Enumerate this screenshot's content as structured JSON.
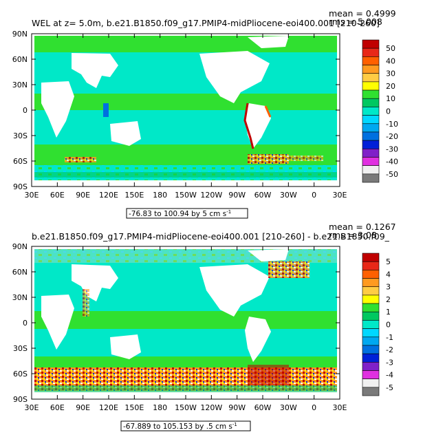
{
  "chart_data": [
    {
      "type": "heatmap",
      "title": "WEL at z=    5.0m, b.e21.B1850.f09_g17.PMIP4-midPliocene-eoi400.001 [210-260]",
      "stats": {
        "mean": "mean = 0.4999",
        "rms": "rms = 5.008"
      },
      "range_label": "-76.83 to 100.94 by 5 cm s",
      "range_sup": "-1",
      "x_ticks": [
        "30E",
        "60E",
        "90E",
        "120E",
        "150E",
        "180",
        "150W",
        "120W",
        "90W",
        "60W",
        "30W",
        "0",
        "30E"
      ],
      "y_ticks": [
        "90N",
        "60N",
        "30N",
        "0",
        "30S",
        "60S",
        "90S"
      ],
      "colorbar": {
        "labels": [
          "50",
          "40",
          "30",
          "20",
          "10",
          "0",
          "-10",
          "-20",
          "-30",
          "-40",
          "-50"
        ],
        "colors": [
          "#c00000",
          "#e82818",
          "#ff6000",
          "#ff9a20",
          "#ffcc44",
          "#ffff00",
          "#30e030",
          "#00c860",
          "#00e8c8",
          "#00d8ff",
          "#00a8f0",
          "#0070e0",
          "#0020d8",
          "#8020c8",
          "#e030e0",
          "#f0f0f0",
          "#7a7a7a"
        ]
      },
      "xlabel": "",
      "ylabel": ""
    },
    {
      "type": "heatmap",
      "title": "b.e21.B1850.f09_g17.PMIP4-midPliocene-eoi400.001 [210-260] - b.e21.B1850.f09_",
      "stats": {
        "mean": "mean = 0.1267",
        "rms": "rms = 3.08"
      },
      "range_label": "-67.889 to 105.153 by .5 cm s",
      "range_sup": "-1",
      "x_ticks": [
        "30E",
        "60E",
        "90E",
        "120E",
        "150E",
        "180",
        "150W",
        "120W",
        "90W",
        "60W",
        "30W",
        "0",
        "30E"
      ],
      "y_ticks": [
        "90N",
        "60N",
        "30N",
        "0",
        "30S",
        "60S",
        "90S"
      ],
      "colorbar": {
        "labels": [
          "5",
          "4",
          "3",
          "2",
          "1",
          "0",
          "-1",
          "-2",
          "-3",
          "-4",
          "-5"
        ],
        "colors": [
          "#c00000",
          "#e82818",
          "#ff6000",
          "#ff9a20",
          "#ffcc44",
          "#ffff00",
          "#30e030",
          "#00c860",
          "#00e8c8",
          "#00d8ff",
          "#00a8f0",
          "#0070e0",
          "#0020d8",
          "#8020c8",
          "#e030e0",
          "#f0f0f0",
          "#7a7a7a"
        ]
      },
      "xlabel": "",
      "ylabel": ""
    }
  ]
}
